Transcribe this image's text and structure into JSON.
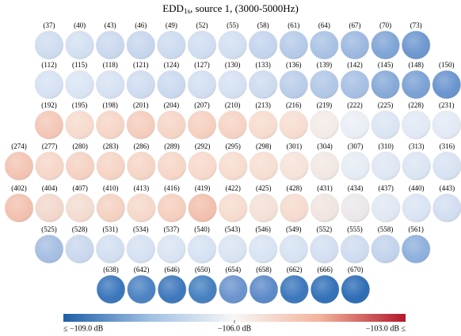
{
  "title": {
    "main": "EDD",
    "sub": "1s",
    "rest": ", source 1, (3000-5000Hz)"
  },
  "rows": [
    {
      "panels": [
        {
          "label": "(37)",
          "color": "#cfdcf0"
        },
        {
          "label": "(40)",
          "color": "#d3e0f2"
        },
        {
          "label": "(43)",
          "color": "#cad9ef"
        },
        {
          "label": "(46)",
          "color": "#c6d6ee"
        },
        {
          "label": "(49)",
          "color": "#cddbf0"
        },
        {
          "label": "(52)",
          "color": "#d0ddf1"
        },
        {
          "label": "(55)",
          "color": "#d2dff1"
        },
        {
          "label": "(58)",
          "color": "#c3d4ed"
        },
        {
          "label": "(61)",
          "color": "#b5cae8"
        },
        {
          "label": "(64)",
          "color": "#a9c2e4"
        },
        {
          "label": "(67)",
          "color": "#9cb8e0"
        },
        {
          "label": "(70)",
          "color": "#7fa5d6"
        },
        {
          "label": "(73)",
          "color": "#6d97cf"
        }
      ]
    },
    {
      "panels": [
        {
          "label": "(112)",
          "color": "#d6e2f3"
        },
        {
          "label": "(115)",
          "color": "#dae5f4"
        },
        {
          "label": "(118)",
          "color": "#d6e2f3"
        },
        {
          "label": "(121)",
          "color": "#cfdcf0"
        },
        {
          "label": "(124)",
          "color": "#cbd9ef"
        },
        {
          "label": "(127)",
          "color": "#d2dff1"
        },
        {
          "label": "(130)",
          "color": "#d5e1f2"
        },
        {
          "label": "(133)",
          "color": "#cddbf0"
        },
        {
          "label": "(136)",
          "color": "#b9cde9"
        },
        {
          "label": "(139)",
          "color": "#b0c7e6"
        },
        {
          "label": "(142)",
          "color": "#a6bfe3"
        },
        {
          "label": "(145)",
          "color": "#86a9d8"
        },
        {
          "label": "(148)",
          "color": "#7aa1d4"
        },
        {
          "label": "(150)",
          "color": "#6a94ce"
        }
      ]
    },
    {
      "panels": [
        {
          "label": "(192)",
          "color": "#f4c7b6"
        },
        {
          "label": "(195)",
          "color": "#f7dacd"
        },
        {
          "label": "(198)",
          "color": "#f6d5c6"
        },
        {
          "label": "(201)",
          "color": "#f5cdbd"
        },
        {
          "label": "(204)",
          "color": "#f6d5c6"
        },
        {
          "label": "(207)",
          "color": "#f5d0c0"
        },
        {
          "label": "(210)",
          "color": "#f6d3c4"
        },
        {
          "label": "(213)",
          "color": "#f7dccf"
        },
        {
          "label": "(216)",
          "color": "#f7ddd1"
        },
        {
          "label": "(219)",
          "color": "#f3ebe7"
        },
        {
          "label": "(222)",
          "color": "#eaeef5"
        },
        {
          "label": "(225)",
          "color": "#dbe5f3"
        },
        {
          "label": "(228)",
          "color": "#e1e9f5"
        },
        {
          "label": "(231)",
          "color": "#e3eaf5"
        }
      ]
    },
    {
      "panels": [
        {
          "label": "(274)",
          "color": "#f3c4b3"
        },
        {
          "label": "(277)",
          "color": "#f6d6c8"
        },
        {
          "label": "(280)",
          "color": "#f5d2c3"
        },
        {
          "label": "(283)",
          "color": "#f6d4c5"
        },
        {
          "label": "(286)",
          "color": "#f6d5c6"
        },
        {
          "label": "(289)",
          "color": "#f6d6c8"
        },
        {
          "label": "(292)",
          "color": "#f7d9cb"
        },
        {
          "label": "(295)",
          "color": "#f7dccf"
        },
        {
          "label": "(298)",
          "color": "#f7ded2"
        },
        {
          "label": "(301)",
          "color": "#f6e3da"
        },
        {
          "label": "(304)",
          "color": "#f2e8e3"
        },
        {
          "label": "(307)",
          "color": "#e6ecf4"
        },
        {
          "label": "(310)",
          "color": "#dfe7f4"
        },
        {
          "label": "(313)",
          "color": "#dbe5f3"
        },
        {
          "label": "(316)",
          "color": "#d7e2f2"
        }
      ]
    },
    {
      "panels": [
        {
          "label": "(402)",
          "color": "#f2c1af"
        },
        {
          "label": "(404)",
          "color": "#f2d8cc"
        },
        {
          "label": "(407)",
          "color": "#f3dcd1"
        },
        {
          "label": "(410)",
          "color": "#f4d2c2"
        },
        {
          "label": "(413)",
          "color": "#f6d8ca"
        },
        {
          "label": "(416)",
          "color": "#f5cfbf"
        },
        {
          "label": "(419)",
          "color": "#f2c0ad"
        },
        {
          "label": "(422)",
          "color": "#f6dccf"
        },
        {
          "label": "(425)",
          "color": "#f4e1d8"
        },
        {
          "label": "(428)",
          "color": "#f5dbcf"
        },
        {
          "label": "(431)",
          "color": "#f0e5e0"
        },
        {
          "label": "(434)",
          "color": "#ece8e9"
        },
        {
          "label": "(437)",
          "color": "#e1e8f4"
        },
        {
          "label": "(440)",
          "color": "#dae4f3"
        },
        {
          "label": "(443)",
          "color": "#d2def1"
        }
      ]
    },
    {
      "panels": [
        {
          "label": "(525)",
          "color": "#a5bee2"
        },
        {
          "label": "(528)",
          "color": "#c9d8ee"
        },
        {
          "label": "(531)",
          "color": "#d2dff1"
        },
        {
          "label": "(534)",
          "color": "#d5e1f2"
        },
        {
          "label": "(537)",
          "color": "#d9e4f3"
        },
        {
          "label": "(540)",
          "color": "#d6e2f3"
        },
        {
          "label": "(543)",
          "color": "#d9e4f3"
        },
        {
          "label": "(546)",
          "color": "#d8e3f3"
        },
        {
          "label": "(549)",
          "color": "#d7e2f2"
        },
        {
          "label": "(552)",
          "color": "#d3dff1"
        },
        {
          "label": "(555)",
          "color": "#cfdcf0"
        },
        {
          "label": "(558)",
          "color": "#c2d3ec"
        },
        {
          "label": "(561)",
          "color": "#8eb0dc"
        }
      ]
    },
    {
      "panels": [
        {
          "label": "(638)",
          "color": "#3a76bb"
        },
        {
          "label": "(642)",
          "color": "#4a82c2"
        },
        {
          "label": "(646)",
          "color": "#3d78bc"
        },
        {
          "label": "(650)",
          "color": "#4580c0"
        },
        {
          "label": "(654)",
          "color": "#6a93cd"
        },
        {
          "label": "(658)",
          "color": "#5c8ac8"
        },
        {
          "label": "(662)",
          "color": "#3c77bc"
        },
        {
          "label": "(666)",
          "color": "#3271b8"
        },
        {
          "label": "(670)",
          "color": "#2d6db5"
        }
      ]
    }
  ],
  "colorbar": {
    "labels": [
      "≤ −109.0 dB",
      "−106.0 dB",
      "−103.0 dB ≤"
    ],
    "colors": [
      "#1f5fa8",
      "#9fbfe3",
      "#f7f7f7",
      "#f2b39b",
      "#b2182b"
    ]
  }
}
